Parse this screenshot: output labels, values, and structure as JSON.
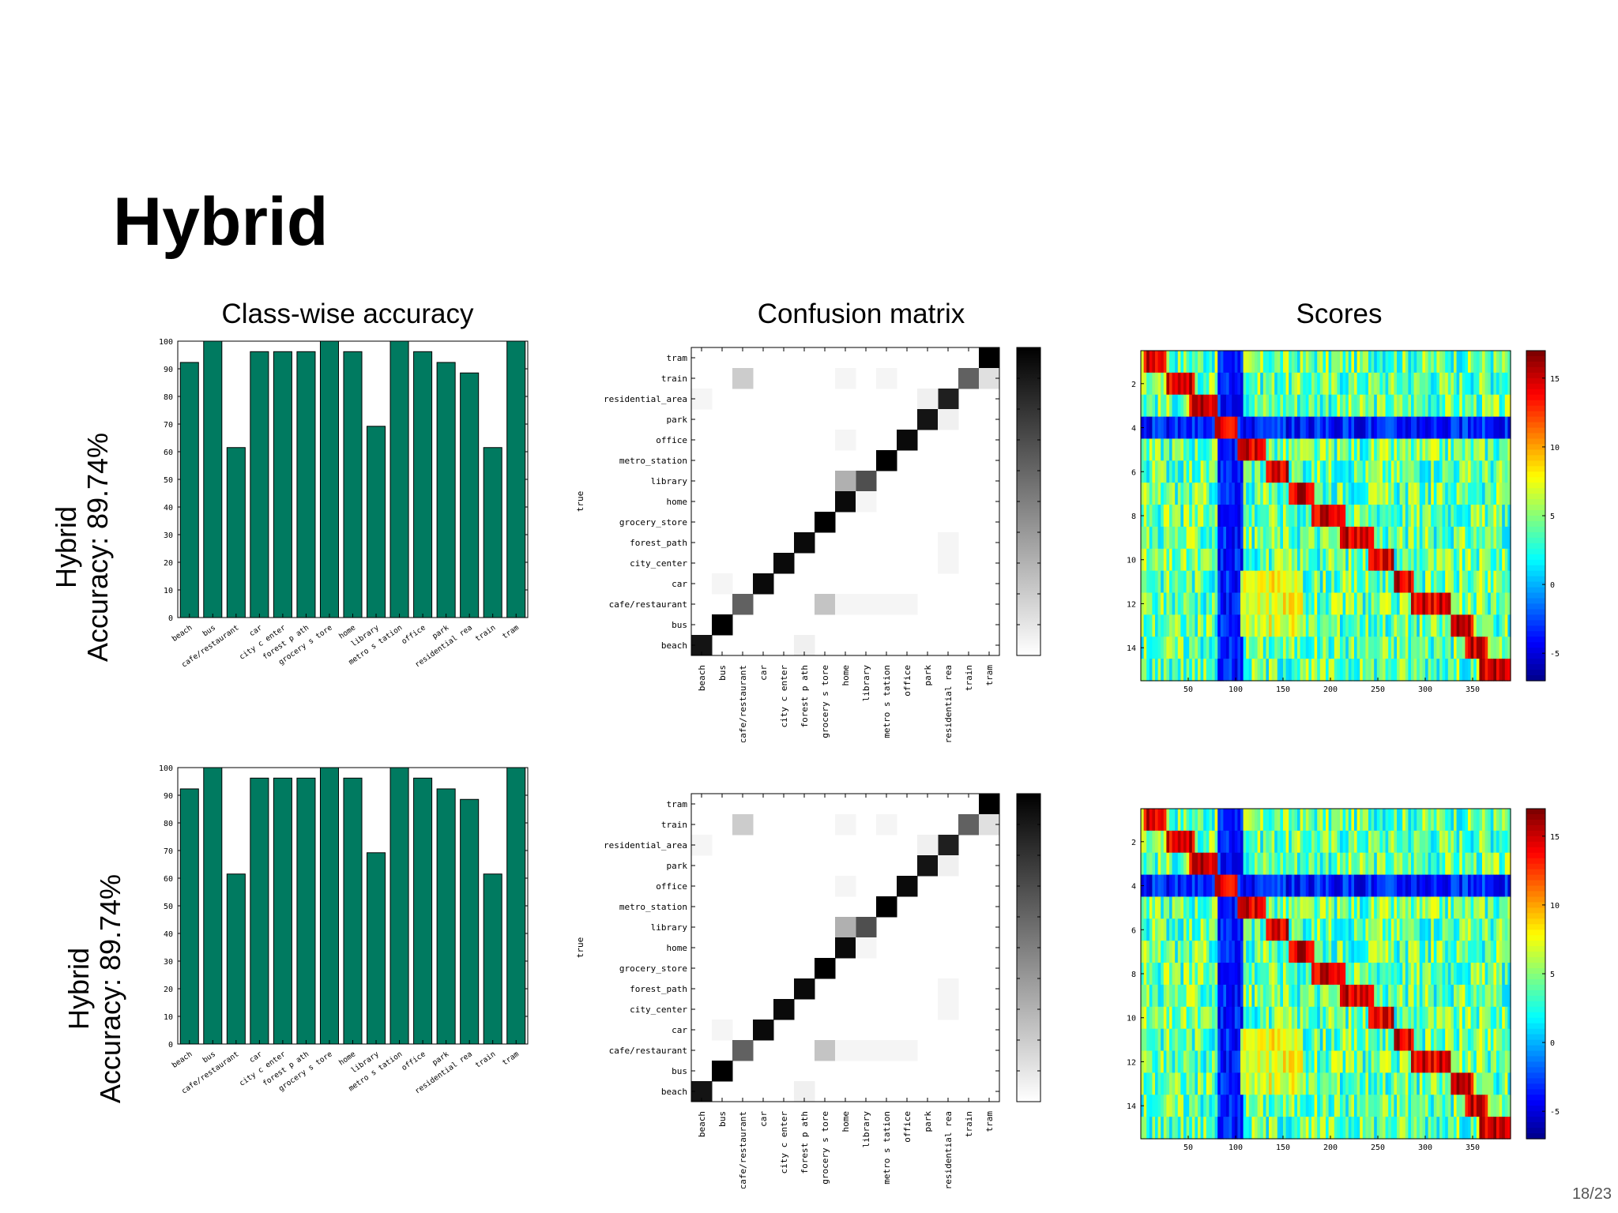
{
  "slide": {
    "title": "Hybrid",
    "page": "18/23",
    "column_titles": {
      "accuracy": "Class-wise accuracy",
      "confusion": "Confusion matrix",
      "scores": "Scores"
    },
    "rows": [
      {
        "label_line1": "Hybrid",
        "label_line2": "Accuracy: 89.74%"
      },
      {
        "label_line1": "Hybrid",
        "label_line2": "Accuracy: 89.74%"
      }
    ]
  },
  "chart_data": [
    {
      "type": "bar",
      "title": "Class-wise accuracy",
      "categories": [
        "beach",
        "bus",
        "cafe/restaurant",
        "car",
        "city_center",
        "forest_path",
        "grocery_store",
        "home",
        "library",
        "metro_station",
        "office",
        "park",
        "residential_area",
        "train",
        "tram"
      ],
      "tick_labels": [
        "beach",
        "bus",
        "cafe/restaurant",
        "car",
        "city c enter",
        "forest p ath",
        "grocery s tore",
        "home",
        "library",
        "metro s tation",
        "office",
        "park",
        "residential rea",
        "train",
        "tram"
      ],
      "values": [
        92.3,
        100,
        61.5,
        96.2,
        96.2,
        96.2,
        100,
        96.2,
        69.2,
        100,
        96.2,
        92.3,
        88.5,
        61.5,
        100
      ],
      "ylim": [
        0,
        100
      ],
      "yticks": [
        0,
        10,
        20,
        30,
        40,
        50,
        60,
        70,
        80,
        90,
        100
      ],
      "color": "#007a60"
    },
    {
      "type": "heatmap",
      "title": "Confusion matrix",
      "ylabel": "true",
      "row_labels": [
        "tram",
        "train",
        "residential_area",
        "park",
        "office",
        "metro_station",
        "library",
        "home",
        "grocery_store",
        "forest_path",
        "city_center",
        "car",
        "cafe/restaurant",
        "bus",
        "beach"
      ],
      "col_labels": [
        "beach",
        "bus",
        "cafe/restaurant",
        "car",
        "city c enter",
        "forest p ath",
        "grocery s tore",
        "home",
        "library",
        "metro s tation",
        "office",
        "park",
        "residential rea",
        "train",
        "tram"
      ],
      "cells": [
        {
          "r": "tram",
          "c": "tram",
          "v": 1.0
        },
        {
          "r": "train",
          "c": "train",
          "v": 0.62
        },
        {
          "r": "train",
          "c": "tram",
          "v": 0.12
        },
        {
          "r": "train",
          "c": "cafe/restaurant",
          "v": 0.2
        },
        {
          "r": "train",
          "c": "home",
          "v": 0.04
        },
        {
          "r": "train",
          "c": "metro_station",
          "v": 0.04
        },
        {
          "r": "residential_area",
          "c": "residential_area",
          "v": 0.88
        },
        {
          "r": "residential_area",
          "c": "beach",
          "v": 0.04
        },
        {
          "r": "residential_area",
          "c": "park",
          "v": 0.06
        },
        {
          "r": "park",
          "c": "park",
          "v": 0.92
        },
        {
          "r": "park",
          "c": "residential_area",
          "v": 0.06
        },
        {
          "r": "office",
          "c": "office",
          "v": 0.96
        },
        {
          "r": "office",
          "c": "home",
          "v": 0.04
        },
        {
          "r": "metro_station",
          "c": "metro_station",
          "v": 1.0
        },
        {
          "r": "library",
          "c": "library",
          "v": 0.69
        },
        {
          "r": "library",
          "c": "home",
          "v": 0.31
        },
        {
          "r": "home",
          "c": "home",
          "v": 0.96
        },
        {
          "r": "home",
          "c": "library",
          "v": 0.04
        },
        {
          "r": "grocery_store",
          "c": "grocery_store",
          "v": 1.0
        },
        {
          "r": "forest_path",
          "c": "forest_path",
          "v": 0.96
        },
        {
          "r": "forest_path",
          "c": "residential_area",
          "v": 0.04
        },
        {
          "r": "city_center",
          "c": "city_center",
          "v": 0.96
        },
        {
          "r": "city_center",
          "c": "residential_area",
          "v": 0.04
        },
        {
          "r": "car",
          "c": "car",
          "v": 0.96
        },
        {
          "r": "car",
          "c": "bus",
          "v": 0.04
        },
        {
          "r": "cafe/restaurant",
          "c": "cafe/restaurant",
          "v": 0.62
        },
        {
          "r": "cafe/restaurant",
          "c": "grocery_store",
          "v": 0.23
        },
        {
          "r": "cafe/restaurant",
          "c": "home",
          "v": 0.04
        },
        {
          "r": "cafe/restaurant",
          "c": "library",
          "v": 0.04
        },
        {
          "r": "cafe/restaurant",
          "c": "metro_station",
          "v": 0.04
        },
        {
          "r": "cafe/restaurant",
          "c": "office",
          "v": 0.04
        },
        {
          "r": "bus",
          "c": "bus",
          "v": 1.0
        },
        {
          "r": "beach",
          "c": "beach",
          "v": 0.92
        },
        {
          "r": "beach",
          "c": "forest_path",
          "v": 0.06
        }
      ],
      "colormap": "gray_reversed",
      "vlim": [
        0,
        1
      ]
    },
    {
      "type": "heatmap",
      "title": "Scores",
      "colormap": "jet",
      "rows": 15,
      "cols": 390,
      "yticks": [
        2,
        4,
        6,
        8,
        10,
        12,
        14
      ],
      "xticks": [
        50,
        100,
        150,
        200,
        250,
        300,
        350
      ],
      "colorbar_ticks": [
        15,
        10,
        5,
        0,
        -5
      ],
      "vlim": [
        -7,
        17
      ],
      "row_hot_ranges": [
        [
          1,
          25
        ],
        [
          25,
          55
        ],
        [
          50,
          80
        ],
        [
          78,
          100
        ],
        [
          100,
          130
        ],
        [
          130,
          155
        ],
        [
          155,
          180
        ],
        [
          180,
          215
        ],
        [
          210,
          245
        ],
        [
          240,
          265
        ],
        [
          265,
          285
        ],
        [
          285,
          325
        ],
        [
          325,
          350
        ],
        [
          340,
          365
        ],
        [
          355,
          390
        ]
      ]
    }
  ]
}
